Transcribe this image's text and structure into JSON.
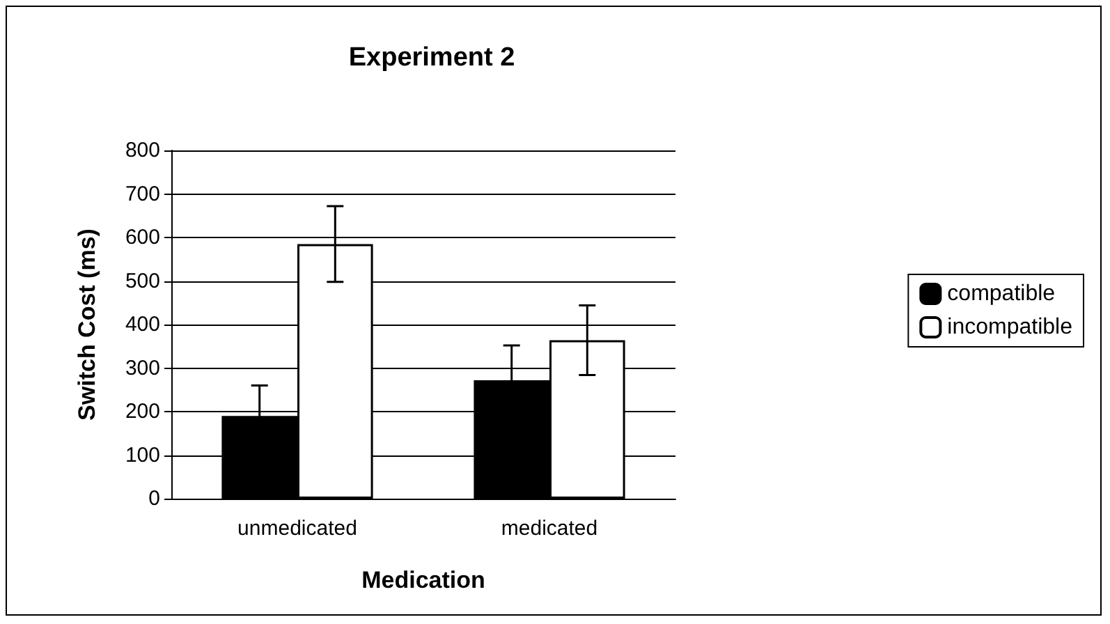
{
  "chart_data": {
    "type": "bar",
    "title": "Experiment 2",
    "xlabel": "Medication",
    "ylabel": "Switch Cost (ms)",
    "categories": [
      "unmedicated",
      "medicated"
    ],
    "series": [
      {
        "name": "compatible",
        "color": "#000000",
        "values": [
          190,
          272
        ],
        "errors": [
          70,
          80
        ]
      },
      {
        "name": "incompatible",
        "color": "#ffffff",
        "values": [
          585,
          364
        ],
        "errors": [
          87,
          80
        ]
      }
    ],
    "ylim": [
      0,
      800
    ],
    "yticks": [
      0,
      100,
      200,
      300,
      400,
      500,
      600,
      700,
      800
    ],
    "grid": "y",
    "legend": "right"
  }
}
